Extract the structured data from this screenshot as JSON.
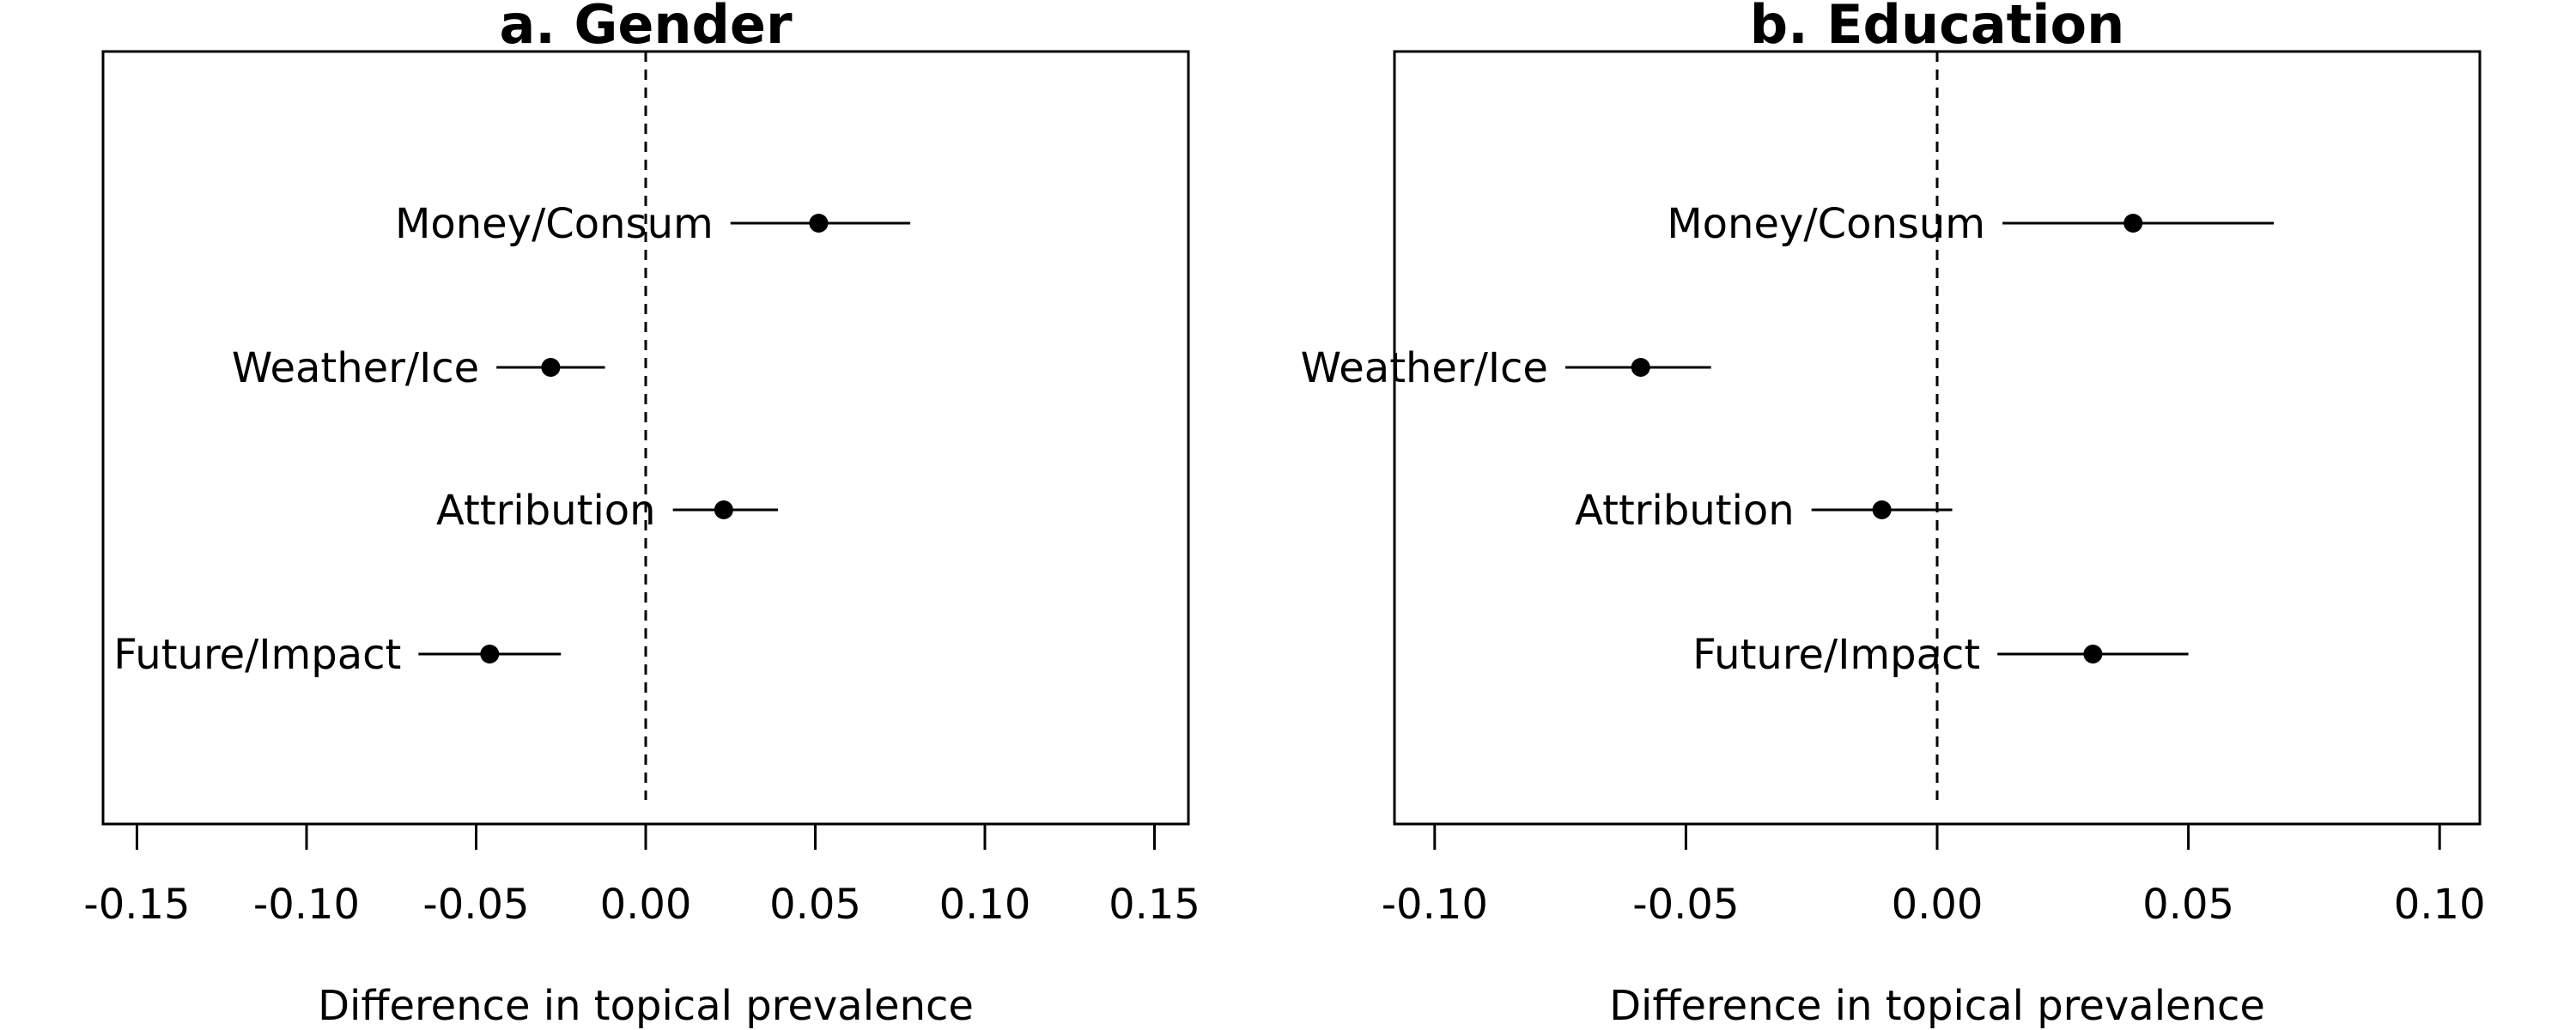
{
  "chart_data": [
    {
      "type": "scatter",
      "title": "a. Gender",
      "xlabel": "Difference in topical prevalence",
      "ylabel": "",
      "xlim": [
        -0.16,
        0.16
      ],
      "xticks": [
        -0.15,
        -0.1,
        -0.05,
        0.0,
        0.05,
        0.1,
        0.15
      ],
      "xtick_labels": [
        "-0.15",
        "-0.10",
        "-0.05",
        "0.00",
        "0.05",
        "0.10",
        "0.15"
      ],
      "reference_line": 0,
      "grid": false,
      "points": [
        {
          "label": "Money/Consum",
          "estimate": 0.051,
          "lower": 0.025,
          "upper": 0.078
        },
        {
          "label": "Weather/Ice",
          "estimate": -0.028,
          "lower": -0.044,
          "upper": -0.012
        },
        {
          "label": "Attribution",
          "estimate": 0.023,
          "lower": 0.008,
          "upper": 0.039
        },
        {
          "label": "Future/Impact",
          "estimate": -0.046,
          "lower": -0.067,
          "upper": -0.025
        }
      ]
    },
    {
      "type": "scatter",
      "title": "b. Education",
      "xlabel": "Difference in topical prevalence",
      "ylabel": "",
      "xlim": [
        -0.108,
        0.108
      ],
      "xticks": [
        -0.1,
        -0.05,
        0.0,
        0.05,
        0.1
      ],
      "xtick_labels": [
        "-0.10",
        "-0.05",
        "0.00",
        "0.05",
        "0.10"
      ],
      "reference_line": 0,
      "grid": false,
      "points": [
        {
          "label": "Money/Consum",
          "estimate": 0.039,
          "lower": 0.013,
          "upper": 0.067
        },
        {
          "label": "Weather/Ice",
          "estimate": -0.059,
          "lower": -0.074,
          "upper": -0.045
        },
        {
          "label": "Attribution",
          "estimate": -0.011,
          "lower": -0.025,
          "upper": 0.003
        },
        {
          "label": "Future/Impact",
          "estimate": 0.031,
          "lower": 0.012,
          "upper": 0.05
        }
      ]
    }
  ]
}
